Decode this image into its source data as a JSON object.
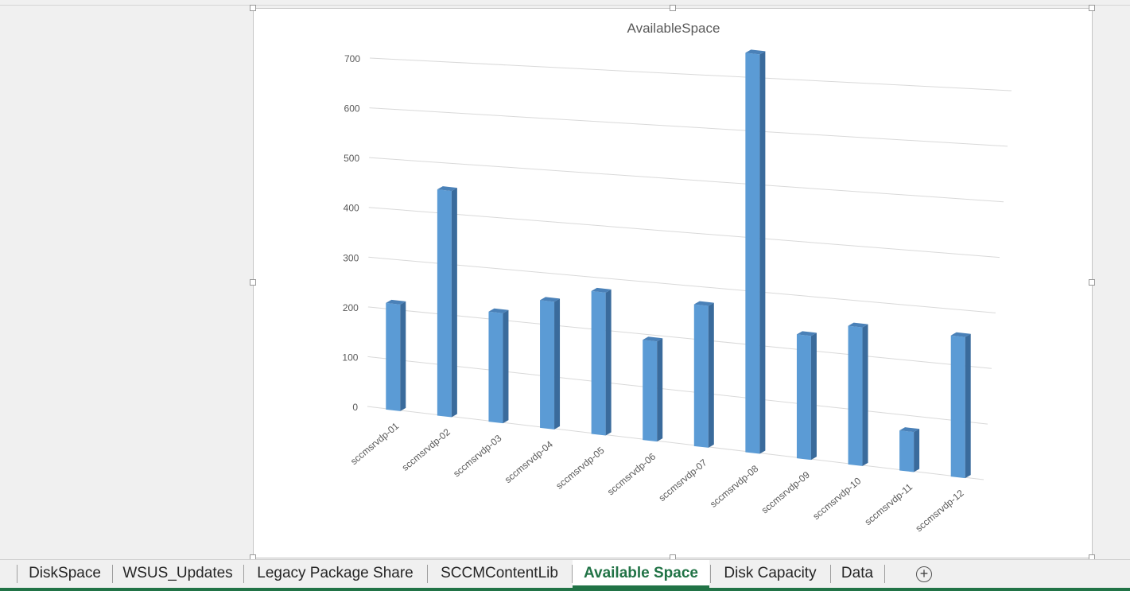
{
  "sheet_tabs": [
    {
      "label": "DiskSpace",
      "active": false
    },
    {
      "label": "WSUS_Updates",
      "active": false
    },
    {
      "label": "Legacy Package Share",
      "active": false
    },
    {
      "label": "SCCMContentLib",
      "active": false
    },
    {
      "label": "Available Space",
      "active": true
    },
    {
      "label": "Disk Capacity",
      "active": false
    },
    {
      "label": "Data",
      "active": false
    }
  ],
  "add_sheet_symbol": "+",
  "colors": {
    "accent": "#217346",
    "bar_front": "#5b9bd5",
    "bar_side": "#3a6b9c",
    "bar_top": "#4a81b8",
    "gridline": "#d9d9d9"
  },
  "chart_data": {
    "type": "bar",
    "style": "3d-column",
    "title": "AvailableSpace",
    "categories": [
      "sccmsrvdp-01",
      "sccmsrvdp-02",
      "sccmsrvdp-03",
      "sccmsrvdp-04",
      "sccmsrvdp-05",
      "sccmsrvdp-06",
      "sccmsrvdp-07",
      "sccmsrvdp-08",
      "sccmsrvdp-09",
      "sccmsrvdp-10",
      "sccmsrvdp-11",
      "sccmsrvdp-12"
    ],
    "values": [
      213,
      448,
      216,
      248,
      275,
      191,
      268,
      748,
      230,
      255,
      73,
      255
    ],
    "y_ticks": [
      "0",
      "100",
      "200",
      "300",
      "400",
      "500",
      "600",
      "700"
    ],
    "ylim": [
      0,
      700
    ],
    "grid": true,
    "legend": "none"
  }
}
